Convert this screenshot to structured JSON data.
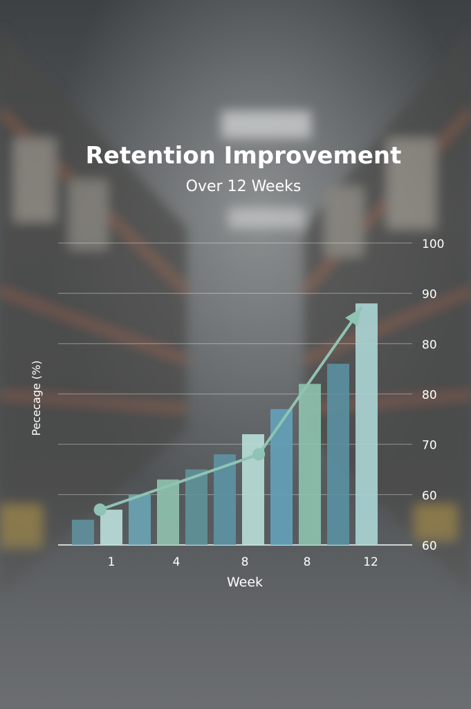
{
  "chart_data": {
    "type": "bar",
    "title": "Retention Improvement",
    "subtitle": "Over 12 Weeks",
    "xlabel": "Week",
    "ylabel": "Pececage (%)",
    "x_tick_labels": [
      "1",
      "4",
      "8",
      "8",
      "12"
    ],
    "y_tick_labels": [
      "60",
      "60",
      "70",
      "80",
      "80",
      "90",
      "100"
    ],
    "ylim": [
      60,
      120
    ],
    "grid": true,
    "legend": "none",
    "values": [
      65,
      67,
      70,
      73,
      75,
      78,
      82,
      87,
      92,
      96,
      108
    ],
    "bar_colors": [
      "#5e8f9b",
      "#b9dcd9",
      "#6aa3b2",
      "#8fc0ad",
      "#5f9199",
      "#5c93a3",
      "#b6dcd7",
      "#63a0b8",
      "#8cc1ad",
      "#5a8f9f",
      "#a9d3d2"
    ],
    "trend_line": {
      "points": [
        {
          "x": 1.6,
          "y": 67
        },
        {
          "x": 7.2,
          "y": 78
        },
        {
          "x": 10.8,
          "y": 107
        }
      ],
      "color": "#8fc3b3"
    }
  }
}
